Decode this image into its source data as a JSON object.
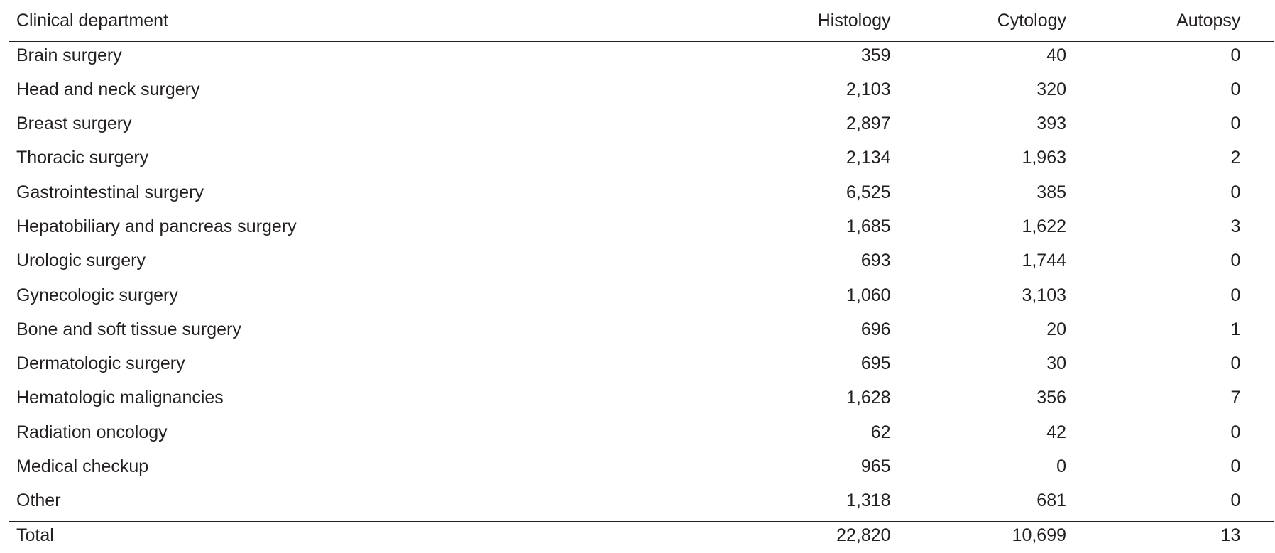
{
  "table": {
    "headers": [
      "Clinical department",
      "Histology",
      "Cytology",
      "Autopsy"
    ],
    "rows": [
      [
        "Brain surgery",
        "359",
        "40",
        "0"
      ],
      [
        "Head and neck surgery",
        "2,103",
        "320",
        "0"
      ],
      [
        "Breast surgery",
        "2,897",
        "393",
        "0"
      ],
      [
        "Thoracic surgery",
        "2,134",
        "1,963",
        "2"
      ],
      [
        "Gastrointestinal surgery",
        "6,525",
        "385",
        "0"
      ],
      [
        "Hepatobiliary and pancreas surgery",
        "1,685",
        "1,622",
        "3"
      ],
      [
        "Urologic surgery",
        "693",
        "1,744",
        "0"
      ],
      [
        "Gynecologic surgery",
        "1,060",
        "3,103",
        "0"
      ],
      [
        "Bone and soft tissue surgery",
        "696",
        "20",
        "1"
      ],
      [
        "Dermatologic surgery",
        "695",
        "30",
        "0"
      ],
      [
        "Hematologic malignancies",
        "1,628",
        "356",
        "7"
      ],
      [
        "Radiation oncology",
        "62",
        "42",
        "0"
      ],
      [
        "Medical checkup",
        "965",
        "0",
        "0"
      ],
      [
        "Other",
        "1,318",
        "681",
        "0"
      ]
    ],
    "total": [
      "Total",
      "22,820",
      "10,699",
      "13"
    ]
  }
}
